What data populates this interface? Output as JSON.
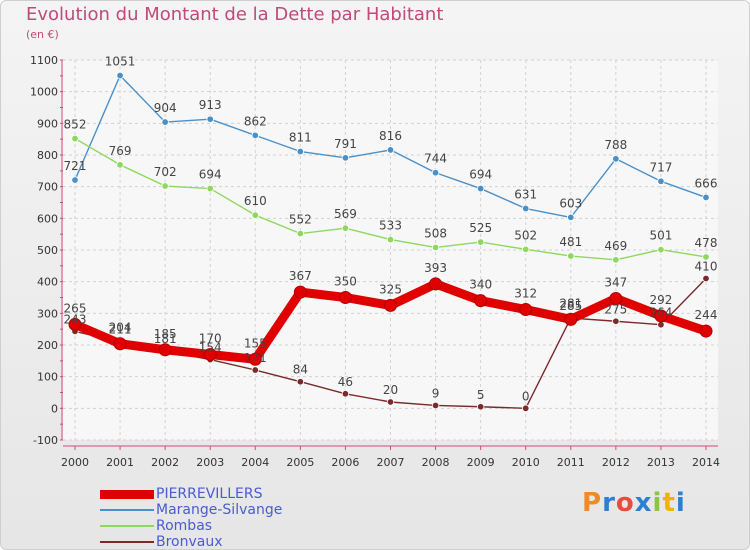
{
  "header": {
    "title": "Evolution du Montant de la Dette par Habitant",
    "subtitle": "(en €)"
  },
  "logo": {
    "text": "Proxiti",
    "colors": [
      "#f08a24",
      "#2f7fd0",
      "#e94b3c",
      "#2f7fd0",
      "#8cc63f",
      "#f0b400",
      "#2f7fd0"
    ]
  },
  "chart_data": {
    "type": "line",
    "title": "Evolution du Montant de la Dette par Habitant",
    "ylabel": "(en €)",
    "xlabel": "",
    "x": [
      "2000",
      "2001",
      "2002",
      "2003",
      "2004",
      "2005",
      "2006",
      "2007",
      "2008",
      "2009",
      "2010",
      "2011",
      "2012",
      "2013",
      "2014"
    ],
    "ylim": [
      -100,
      1100
    ],
    "yticks": [
      "-100",
      "0",
      "100",
      "200",
      "300",
      "400",
      "500",
      "600",
      "700",
      "800",
      "900",
      "1000",
      "1100"
    ],
    "grid": true,
    "legend_position": "bottom-left",
    "series": [
      {
        "name": "PIERREVILLERS",
        "color": "#e00000",
        "values": [
          265,
          204,
          185,
          170,
          155,
          367,
          350,
          325,
          393,
          340,
          312,
          281,
          347,
          292,
          244
        ],
        "labels": [
          "265",
          "204",
          "185",
          "170",
          "155",
          "367",
          "350",
          "325",
          "393",
          "340",
          "312",
          "281",
          "347",
          "292",
          "244"
        ]
      },
      {
        "name": "Marange-Silvange",
        "color": "#4a90c8",
        "values": [
          721,
          1051,
          904,
          913,
          862,
          811,
          791,
          816,
          744,
          694,
          631,
          603,
          788,
          717,
          666
        ],
        "labels": [
          "721",
          "1051",
          "904",
          "913",
          "862",
          "811",
          "791",
          "816",
          "744",
          "694",
          "631",
          "603",
          "788",
          "717",
          "666"
        ]
      },
      {
        "name": "Rombas",
        "color": "#8ed860",
        "values": [
          852,
          769,
          702,
          694,
          610,
          552,
          569,
          533,
          508,
          525,
          502,
          481,
          469,
          501,
          478
        ],
        "labels": [
          "852",
          "769",
          "702",
          "694",
          "610",
          "552",
          "569",
          "533",
          "508",
          "525",
          "502",
          "481",
          "469",
          "501",
          "478"
        ]
      },
      {
        "name": "Bronvaux",
        "color": "#7a2a2a",
        "values": [
          243,
          211,
          181,
          154,
          121,
          84,
          46,
          20,
          9,
          5,
          0,
          285,
          275,
          264,
          410
        ],
        "labels": [
          "243",
          "211",
          "181",
          "154",
          "121",
          "84",
          "46",
          "20",
          "9",
          "5",
          "0",
          "285",
          "275",
          "264",
          "410"
        ]
      }
    ]
  }
}
